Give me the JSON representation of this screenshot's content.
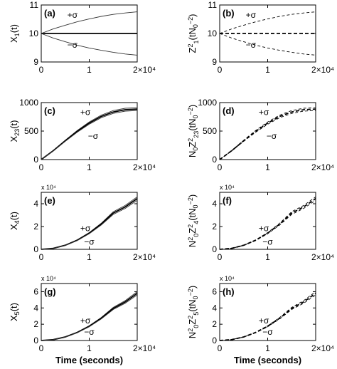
{
  "xlabel": "Time (seconds)",
  "chart_data": [
    {
      "panel": "(a)",
      "type": "line",
      "ylabel": "X1(t)",
      "xlim": [
        0,
        20000
      ],
      "ylim": [
        9,
        11
      ],
      "yticks": [
        "9",
        "10",
        "11"
      ],
      "xticks": [
        "0",
        "1",
        "2×10⁴"
      ],
      "scale_label": "",
      "show_xlabel": false,
      "dashed": false,
      "annotations": [
        {
          "text": "+σ",
          "x": 6500,
          "y": 10.55
        },
        {
          "text": "−σ",
          "x": 6500,
          "y": 9.5
        }
      ],
      "series": [
        {
          "x": [
            0,
            2500,
            5000,
            7500,
            10000,
            12500,
            15000,
            17500,
            20000
          ],
          "y": [
            10,
            10.16,
            10.29,
            10.41,
            10.51,
            10.6,
            10.67,
            10.72,
            10.76
          ]
        },
        {
          "x": [
            0,
            2500,
            5000,
            7500,
            10000,
            12500,
            15000,
            17500,
            20000
          ],
          "y": [
            10,
            10,
            10,
            10,
            10,
            10,
            10,
            10,
            10
          ],
          "bold": true
        },
        {
          "x": [
            0,
            2500,
            5000,
            7500,
            10000,
            12500,
            15000,
            17500,
            20000
          ],
          "y": [
            10,
            9.84,
            9.71,
            9.59,
            9.49,
            9.41,
            9.34,
            9.28,
            9.24
          ]
        }
      ]
    },
    {
      "panel": "(b)",
      "type": "line",
      "ylabel": "Z1²(tN0⁻²)",
      "xlim": [
        0,
        20000
      ],
      "ylim": [
        9,
        11
      ],
      "yticks": [
        "9",
        "10",
        "11"
      ],
      "xticks": [
        "0",
        "1",
        "2×10⁴"
      ],
      "scale_label": "",
      "show_xlabel": false,
      "dashed": true,
      "annotations": [
        {
          "text": "+σ",
          "x": 6500,
          "y": 10.55
        },
        {
          "text": "−σ",
          "x": 6500,
          "y": 9.5
        }
      ],
      "series": [
        {
          "x": [
            0,
            2500,
            5000,
            7500,
            10000,
            12500,
            15000,
            17500,
            20000
          ],
          "y": [
            10,
            10.16,
            10.29,
            10.41,
            10.51,
            10.6,
            10.67,
            10.72,
            10.76
          ]
        },
        {
          "x": [
            0,
            2500,
            5000,
            7500,
            10000,
            12500,
            15000,
            17500,
            20000
          ],
          "y": [
            10,
            10,
            10,
            10,
            10,
            10,
            10,
            10,
            10
          ],
          "bold": true
        },
        {
          "x": [
            0,
            2500,
            5000,
            7500,
            10000,
            12500,
            15000,
            17500,
            20000
          ],
          "y": [
            10,
            9.84,
            9.71,
            9.59,
            9.49,
            9.41,
            9.34,
            9.28,
            9.24
          ]
        }
      ]
    },
    {
      "panel": "(c)",
      "type": "line",
      "ylabel": "X23(t)",
      "xlim": [
        0,
        20000
      ],
      "ylim": [
        0,
        1000
      ],
      "yticks": [
        "0",
        "500",
        "1000"
      ],
      "xticks": [
        "0",
        "1",
        "2×10⁴"
      ],
      "scale_label": "",
      "show_xlabel": false,
      "dashed": false,
      "annotations": [
        {
          "text": "+σ",
          "x": 9200,
          "y": 780
        },
        {
          "text": "−σ",
          "x": 10800,
          "y": 360
        }
      ],
      "series": [
        {
          "x": [
            0,
            2500,
            5000,
            7500,
            10000,
            12500,
            15000,
            17500,
            20000
          ],
          "y": [
            0,
            160,
            340,
            510,
            660,
            780,
            860,
            900,
            910
          ]
        },
        {
          "x": [
            0,
            2500,
            5000,
            7500,
            10000,
            12500,
            15000,
            17500,
            20000
          ],
          "y": [
            0,
            155,
            330,
            495,
            640,
            758,
            835,
            875,
            885
          ],
          "bold": true
        },
        {
          "x": [
            0,
            2500,
            5000,
            7500,
            10000,
            12500,
            15000,
            17500,
            20000
          ],
          "y": [
            0,
            150,
            320,
            480,
            620,
            735,
            810,
            850,
            860
          ]
        }
      ]
    },
    {
      "panel": "(d)",
      "type": "line",
      "ylabel": "N0Z23²(tN0⁻²)",
      "xlim": [
        0,
        20000
      ],
      "ylim": [
        0,
        1000
      ],
      "yticks": [
        "0",
        "500",
        "1000"
      ],
      "xticks": [
        "0",
        "1",
        "2×10⁴"
      ],
      "scale_label": "",
      "show_xlabel": false,
      "dashed": true,
      "annotations": [
        {
          "text": "+σ",
          "x": 9200,
          "y": 780
        },
        {
          "text": "−σ",
          "x": 10800,
          "y": 360
        }
      ],
      "series": [
        {
          "x": [
            0,
            2500,
            5000,
            7500,
            10000,
            12500,
            15000,
            17500,
            20000
          ],
          "y": [
            0,
            160,
            340,
            510,
            660,
            780,
            860,
            900,
            910
          ]
        },
        {
          "x": [
            0,
            2500,
            5000,
            7500,
            10000,
            12500,
            15000,
            17500,
            20000
          ],
          "y": [
            0,
            155,
            330,
            495,
            640,
            758,
            835,
            875,
            885
          ],
          "bold": true
        },
        {
          "x": [
            0,
            2500,
            5000,
            7500,
            10000,
            12500,
            15000,
            17500,
            20000
          ],
          "y": [
            0,
            150,
            320,
            480,
            620,
            735,
            810,
            850,
            860
          ]
        }
      ]
    },
    {
      "panel": "(e)",
      "type": "line",
      "ylabel": "X4(t)",
      "xlim": [
        0,
        20000
      ],
      "ylim": [
        0,
        50000
      ],
      "yticks": [
        "0",
        "2",
        "4"
      ],
      "xticks": [
        "0",
        "1",
        "2×10⁴"
      ],
      "scale_label": "x 10⁴",
      "show_xlabel": false,
      "dashed": false,
      "annotations": [
        {
          "text": "+σ",
          "x": 9200,
          "y": 16000
        },
        {
          "text": "−σ",
          "x": 10000,
          "y": 4000
        }
      ],
      "series": [
        {
          "x": [
            0,
            2500,
            5000,
            7500,
            10000,
            12500,
            15000,
            17500,
            20000
          ],
          "y": [
            0,
            900,
            3700,
            8300,
            14700,
            22900,
            33000,
            38500,
            46000
          ]
        },
        {
          "x": [
            0,
            2500,
            5000,
            7500,
            10000,
            12500,
            15000,
            17500,
            20000
          ],
          "y": [
            0,
            870,
            3550,
            8000,
            14200,
            22100,
            31800,
            37200,
            44500
          ],
          "bold": true
        },
        {
          "x": [
            0,
            2500,
            5000,
            7500,
            10000,
            12500,
            15000,
            17500,
            20000
          ],
          "y": [
            0,
            840,
            3400,
            7700,
            13700,
            21300,
            30600,
            35900,
            43000
          ]
        }
      ]
    },
    {
      "panel": "(f)",
      "type": "line",
      "ylabel": "N0²Z4²(tN0⁻²)",
      "xlim": [
        0,
        20000
      ],
      "ylim": [
        0,
        50000
      ],
      "yticks": [
        "0",
        "2",
        "4"
      ],
      "xticks": [
        "0",
        "1",
        "2×10⁴"
      ],
      "scale_label": "x 10⁴",
      "show_xlabel": false,
      "dashed": true,
      "annotations": [
        {
          "text": "+σ",
          "x": 9200,
          "y": 16000
        },
        {
          "text": "−σ",
          "x": 10000,
          "y": 4000
        }
      ],
      "series": [
        {
          "x": [
            0,
            2500,
            5000,
            7500,
            10000,
            12500,
            15000,
            17500,
            20000
          ],
          "y": [
            0,
            900,
            3700,
            8300,
            14700,
            22900,
            33000,
            38500,
            46000
          ]
        },
        {
          "x": [
            0,
            2500,
            5000,
            7500,
            10000,
            12500,
            15000,
            17500,
            20000
          ],
          "y": [
            0,
            870,
            3550,
            8000,
            14200,
            22100,
            31800,
            37200,
            44500
          ],
          "bold": true
        },
        {
          "x": [
            0,
            2500,
            5000,
            7500,
            10000,
            12500,
            15000,
            17500,
            20000
          ],
          "y": [
            0,
            840,
            3400,
            7700,
            13700,
            21300,
            30600,
            35900,
            43000
          ]
        }
      ]
    },
    {
      "panel": "(g)",
      "type": "line",
      "ylabel": "X5(t)",
      "xlim": [
        0,
        20000
      ],
      "ylim": [
        0,
        70000
      ],
      "yticks": [
        "0",
        "2",
        "4",
        "6"
      ],
      "xticks": [
        "0",
        "1",
        "2×10⁴"
      ],
      "scale_label": "x 10⁴",
      "show_xlabel": true,
      "dashed": false,
      "annotations": [
        {
          "text": "+σ",
          "x": 9200,
          "y": 21000
        },
        {
          "text": "−σ",
          "x": 10000,
          "y": 7000
        }
      ],
      "series": [
        {
          "x": [
            0,
            2500,
            5000,
            7500,
            10000,
            12500,
            15000,
            17500,
            20000
          ],
          "y": [
            0,
            1100,
            4500,
            10200,
            18100,
            28300,
            40700,
            49000,
            60000
          ]
        },
        {
          "x": [
            0,
            2500,
            5000,
            7500,
            10000,
            12500,
            15000,
            17500,
            20000
          ],
          "y": [
            0,
            1060,
            4350,
            9850,
            17500,
            27400,
            39400,
            47400,
            58000
          ],
          "bold": true
        },
        {
          "x": [
            0,
            2500,
            5000,
            7500,
            10000,
            12500,
            15000,
            17500,
            20000
          ],
          "y": [
            0,
            1020,
            4200,
            9500,
            16900,
            26500,
            38100,
            45800,
            56000
          ]
        }
      ]
    },
    {
      "panel": "(h)",
      "type": "line",
      "ylabel": "N0²Z5²(tN0⁻²)",
      "xlim": [
        0,
        20000
      ],
      "ylim": [
        0,
        70000
      ],
      "yticks": [
        "0",
        "2",
        "4",
        "6"
      ],
      "xticks": [
        "0",
        "1",
        "2×10⁴"
      ],
      "scale_label": "x 10⁴",
      "show_xlabel": true,
      "dashed": true,
      "annotations": [
        {
          "text": "+σ",
          "x": 9200,
          "y": 21000
        },
        {
          "text": "−σ",
          "x": 10000,
          "y": 7000
        }
      ],
      "series": [
        {
          "x": [
            0,
            2500,
            5000,
            7500,
            10000,
            12500,
            15000,
            17500,
            20000
          ],
          "y": [
            0,
            1100,
            4500,
            10200,
            18100,
            28300,
            40700,
            49000,
            60000
          ]
        },
        {
          "x": [
            0,
            2500,
            5000,
            7500,
            10000,
            12500,
            15000,
            17500,
            20000
          ],
          "y": [
            0,
            1060,
            4350,
            9850,
            17500,
            27400,
            39400,
            47400,
            58000
          ],
          "bold": true
        },
        {
          "x": [
            0,
            2500,
            5000,
            7500,
            10000,
            12500,
            15000,
            17500,
            20000
          ],
          "y": [
            0,
            1020,
            4200,
            9500,
            16900,
            26500,
            38100,
            45800,
            56000
          ]
        }
      ]
    }
  ]
}
